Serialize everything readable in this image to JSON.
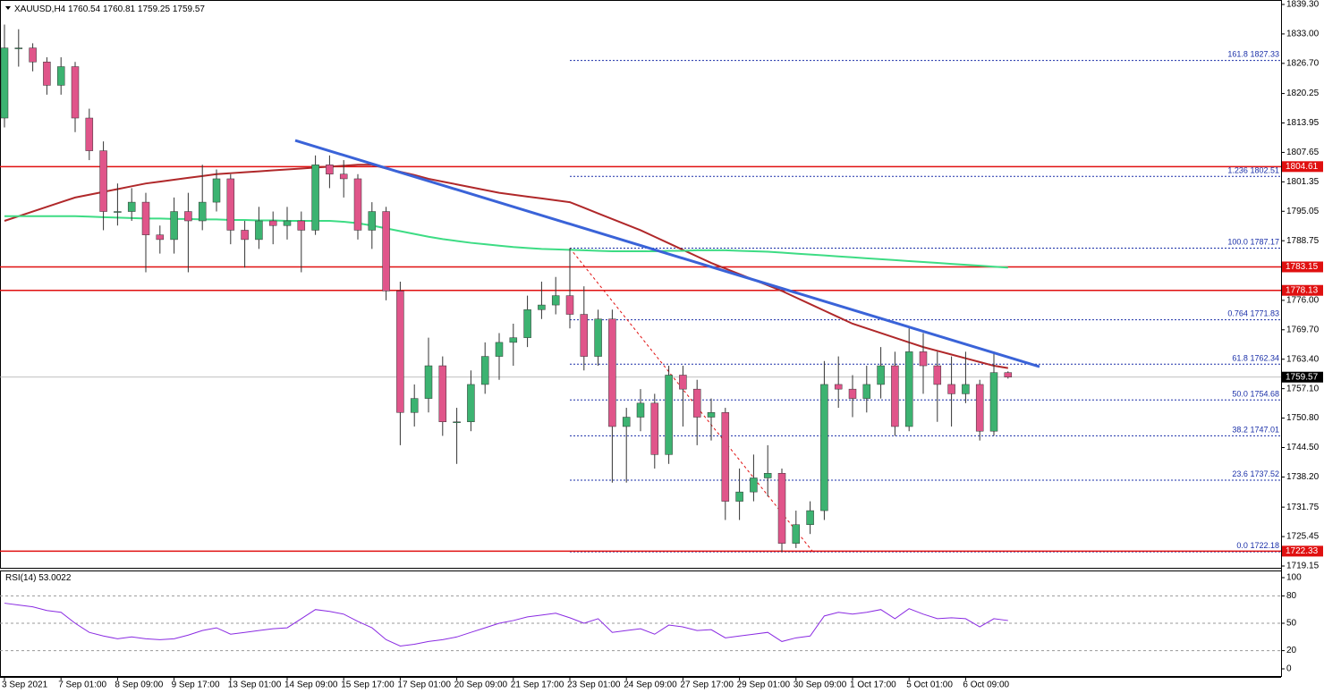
{
  "chart_data": {
    "type": "candlestick",
    "symbol": "XAUUSD,H4",
    "candles": [
      [
        1815,
        1835,
        1813,
        1830
      ],
      [
        1830,
        1834,
        1826,
        1830
      ],
      [
        1830,
        1831,
        1825,
        1827
      ],
      [
        1827,
        1828,
        1820,
        1822
      ],
      [
        1822,
        1828,
        1820,
        1826
      ],
      [
        1826,
        1827,
        1812,
        1815
      ],
      [
        1815,
        1817,
        1806,
        1808
      ],
      [
        1808,
        1810,
        1791,
        1795
      ],
      [
        1795,
        1801,
        1792,
        1795
      ],
      [
        1795,
        1800,
        1793,
        1797
      ],
      [
        1797,
        1799,
        1782,
        1790
      ],
      [
        1790,
        1792,
        1786,
        1789
      ],
      [
        1789,
        1798,
        1786,
        1795
      ],
      [
        1795,
        1799,
        1782,
        1793
      ],
      [
        1793,
        1805,
        1791,
        1797
      ],
      [
        1797,
        1804,
        1795,
        1802
      ],
      [
        1802,
        1803,
        1788,
        1791
      ],
      [
        1791,
        1793,
        1783,
        1789
      ],
      [
        1789,
        1796,
        1787,
        1793
      ],
      [
        1793,
        1795,
        1788,
        1792
      ],
      [
        1792,
        1796,
        1789,
        1793
      ],
      [
        1793,
        1795,
        1782,
        1791
      ],
      [
        1791,
        1807,
        1790,
        1805
      ],
      [
        1805,
        1807,
        1800,
        1803
      ],
      [
        1803,
        1806,
        1798,
        1802
      ],
      [
        1802,
        1803,
        1789,
        1791
      ],
      [
        1791,
        1797,
        1787,
        1795
      ],
      [
        1795,
        1796,
        1776,
        1778
      ],
      [
        1778,
        1780,
        1745,
        1752
      ],
      [
        1752,
        1758,
        1749,
        1755
      ],
      [
        1755,
        1768,
        1752,
        1762
      ],
      [
        1762,
        1764,
        1747,
        1750
      ],
      [
        1750,
        1753,
        1741,
        1750
      ],
      [
        1750,
        1761,
        1748,
        1758
      ],
      [
        1758,
        1767,
        1756,
        1764
      ],
      [
        1764,
        1769,
        1759,
        1767
      ],
      [
        1767,
        1771,
        1762,
        1768
      ],
      [
        1768,
        1777,
        1766,
        1774
      ],
      [
        1774,
        1780,
        1772,
        1775
      ],
      [
        1775,
        1781,
        1773,
        1777
      ],
      [
        1777,
        1787.17,
        1770,
        1773
      ],
      [
        1773,
        1779,
        1761,
        1764
      ],
      [
        1764,
        1774,
        1762,
        1772
      ],
      [
        1772,
        1774,
        1737,
        1749
      ],
      [
        1749,
        1753,
        1737,
        1751
      ],
      [
        1751,
        1757,
        1748,
        1754
      ],
      [
        1754,
        1756,
        1740,
        1743
      ],
      [
        1743,
        1762,
        1741,
        1760
      ],
      [
        1760,
        1762,
        1749,
        1757
      ],
      [
        1757,
        1759,
        1745,
        1751
      ],
      [
        1751,
        1755,
        1746,
        1752
      ],
      [
        1752,
        1753,
        1729,
        1733
      ],
      [
        1733,
        1740,
        1729,
        1735
      ],
      [
        1735,
        1743,
        1733,
        1738
      ],
      [
        1738,
        1745,
        1734,
        1739
      ],
      [
        1739,
        1740,
        1722.18,
        1724
      ],
      [
        1724,
        1731,
        1723,
        1728
      ],
      [
        1728,
        1733,
        1726,
        1731
      ],
      [
        1731,
        1763,
        1729,
        1758
      ],
      [
        1758,
        1764,
        1753,
        1757
      ],
      [
        1757,
        1760,
        1751,
        1755
      ],
      [
        1755,
        1762,
        1752,
        1758
      ],
      [
        1758,
        1766,
        1755,
        1762
      ],
      [
        1762,
        1765,
        1747,
        1749
      ],
      [
        1749,
        1770,
        1748,
        1765
      ],
      [
        1765,
        1769,
        1756,
        1762
      ],
      [
        1762,
        1765,
        1750,
        1758
      ],
      [
        1758,
        1764,
        1749,
        1756
      ],
      [
        1756,
        1765,
        1754,
        1758
      ],
      [
        1758,
        1759,
        1746,
        1748
      ],
      [
        1748,
        1765,
        1747,
        1760.54
      ],
      [
        1760.54,
        1760.81,
        1759.25,
        1759.57
      ]
    ],
    "x": [
      "3 Sep 2021",
      null,
      null,
      null,
      "7 Sep 01:00",
      null,
      null,
      null,
      "8 Sep 09:00",
      null,
      null,
      null,
      "9 Sep 17:00",
      null,
      null,
      null,
      "13 Sep 01:00",
      null,
      null,
      null,
      "14 Sep 09:00",
      null,
      null,
      null,
      "15 Sep 17:00",
      null,
      null,
      null,
      "17 Sep 01:00",
      null,
      null,
      null,
      "20 Sep 09:00",
      null,
      null,
      null,
      "21 Sep 17:00",
      null,
      null,
      null,
      "23 Sep 01:00",
      null,
      null,
      null,
      "24 Sep 09:00",
      null,
      null,
      null,
      "27 Sep 17:00",
      null,
      null,
      null,
      "29 Sep 01:00",
      null,
      null,
      null,
      "30 Sep 09:00",
      null,
      null,
      null,
      "1 Oct 17:00",
      null,
      null,
      null,
      "5 Oct 01:00",
      null,
      null,
      null,
      "6 Oct 09:00",
      null,
      null,
      null
    ],
    "ylim": [
      1719.15,
      1839.3
    ],
    "yticks": [
      {
        "value": 1839.3,
        "label": "1839.30"
      },
      {
        "value": 1833,
        "label": "1833.00"
      },
      {
        "value": 1826.7,
        "label": "1826.70"
      },
      1820.25,
      1813.95,
      1807.65,
      1801.35,
      1795.05,
      1788.75,
      {
        "value": 1776,
        "label": "1776.00"
      },
      {
        "value": 1769.7,
        "label": "1769.70"
      },
      {
        "value": 1763.4,
        "label": "1763.40"
      },
      {
        "value": 1757.1,
        "label": "1757.10"
      },
      {
        "value": 1750.8,
        "label": "1750.80"
      },
      {
        "value": 1744.5,
        "label": "1744.50"
      },
      {
        "value": 1738.2,
        "label": "1738.20"
      },
      1731.75,
      1725.45,
      1719.15
    ],
    "bull_color": "#3cb371",
    "bear_color": "#e0558a",
    "series": [
      {
        "color": "#b0282a",
        "values": [
          1793,
          1794,
          1795,
          1796,
          1797,
          1798,
          1798.6,
          1799.2,
          1799.8,
          1800.4,
          1801,
          1801.4,
          1801.8,
          1802.2,
          1802.6,
          1803,
          1803.2,
          1803.4,
          1803.6,
          1803.8,
          1804,
          1804.2,
          1804.4,
          1804.6,
          1804.8,
          1805,
          1805,
          1804.2,
          1803.5,
          1802.8,
          1802,
          1801.4,
          1800.8,
          1800.2,
          1799.6,
          1799,
          1798.6,
          1798.2,
          1797.8,
          1797.4,
          1797,
          1795.8,
          1794.6,
          1793.4,
          1792.2,
          1791,
          1789.6,
          1788.2,
          1786.8,
          1785.4,
          1784,
          1782.8,
          1781.6,
          1780.4,
          1779.2,
          1778,
          1776.6,
          1775.2,
          1773.8,
          1772.4,
          1771,
          1770,
          1769,
          1768,
          1767,
          1766,
          1765.2,
          1764.4,
          1763.6,
          1762.8,
          1762,
          1761.5
        ]
      },
      {
        "color": "#3ddc84",
        "values": [
          1794,
          1794,
          1794,
          1794,
          1794,
          1794,
          1793.9,
          1793.8,
          1793.7,
          1793.6,
          1793.5,
          1793.5,
          1793.4,
          1793.4,
          1793.3,
          1793.3,
          1793.2,
          1793.2,
          1793.1,
          1793.1,
          1793,
          1793,
          1793,
          1793,
          1792.8,
          1792.5,
          1792,
          1791.4,
          1790.8,
          1790.2,
          1789.6,
          1789.1,
          1788.7,
          1788.3,
          1788,
          1787.7,
          1787.4,
          1787.2,
          1787,
          1786.9,
          1786.8,
          1786.7,
          1786.6,
          1786.5,
          1786.5,
          1786.5,
          1786.5,
          1786.6,
          1786.6,
          1786.7,
          1786.7,
          1786.7,
          1786.6,
          1786.5,
          1786.4,
          1786.2,
          1786,
          1785.8,
          1785.6,
          1785.4,
          1785.2,
          1785,
          1784.8,
          1784.6,
          1784.4,
          1784.2,
          1784,
          1783.8,
          1783.6,
          1783.4,
          1783.2,
          1783
        ]
      }
    ],
    "levels": [
      1804.61,
      1783.15,
      1778.13,
      1722.33
    ],
    "level_color": "#e01010",
    "trendline": {
      "start": 1810.2,
      "end": 1761.8,
      "color": "#3a63d8"
    },
    "fib": [
      {
        "ratio": "161.8",
        "price": 1827.33
      },
      {
        "ratio": "1.236",
        "price": 1802.51
      },
      {
        "ratio": "100.0",
        "price": 1787.17
      },
      {
        "ratio": "0.764",
        "price": 1771.83
      },
      {
        "ratio": "61.8",
        "price": 1762.34
      },
      {
        "ratio": "50.0",
        "price": 1754.68
      },
      {
        "ratio": "38.2",
        "price": 1747.01
      },
      {
        "ratio": "23.6",
        "price": 1737.52
      },
      {
        "ratio": "0.0",
        "price": 1722.18
      }
    ],
    "fib_color": "#1a2fa8",
    "rsi": {
      "label": "RSI(14)",
      "color": "#8a2be2",
      "ylim": [
        0,
        100
      ],
      "yticks": [
        0,
        20,
        50,
        80,
        100
      ],
      "values": [
        72,
        70,
        68,
        64,
        62,
        50,
        40,
        36,
        33,
        35,
        33,
        32,
        33,
        37,
        42,
        45,
        38,
        40,
        42,
        44,
        45,
        55,
        65,
        63,
        60,
        52,
        45,
        32,
        25,
        27,
        30,
        32,
        35,
        40,
        45,
        50,
        53,
        57,
        59,
        61,
        56,
        50,
        55,
        40,
        42,
        44,
        38,
        48,
        46,
        42,
        43,
        34,
        36,
        38,
        40,
        30,
        34,
        36,
        58,
        62,
        60,
        62,
        65,
        55,
        66,
        60,
        55,
        56,
        55,
        46,
        55,
        53.0022
      ]
    }
  }
}
